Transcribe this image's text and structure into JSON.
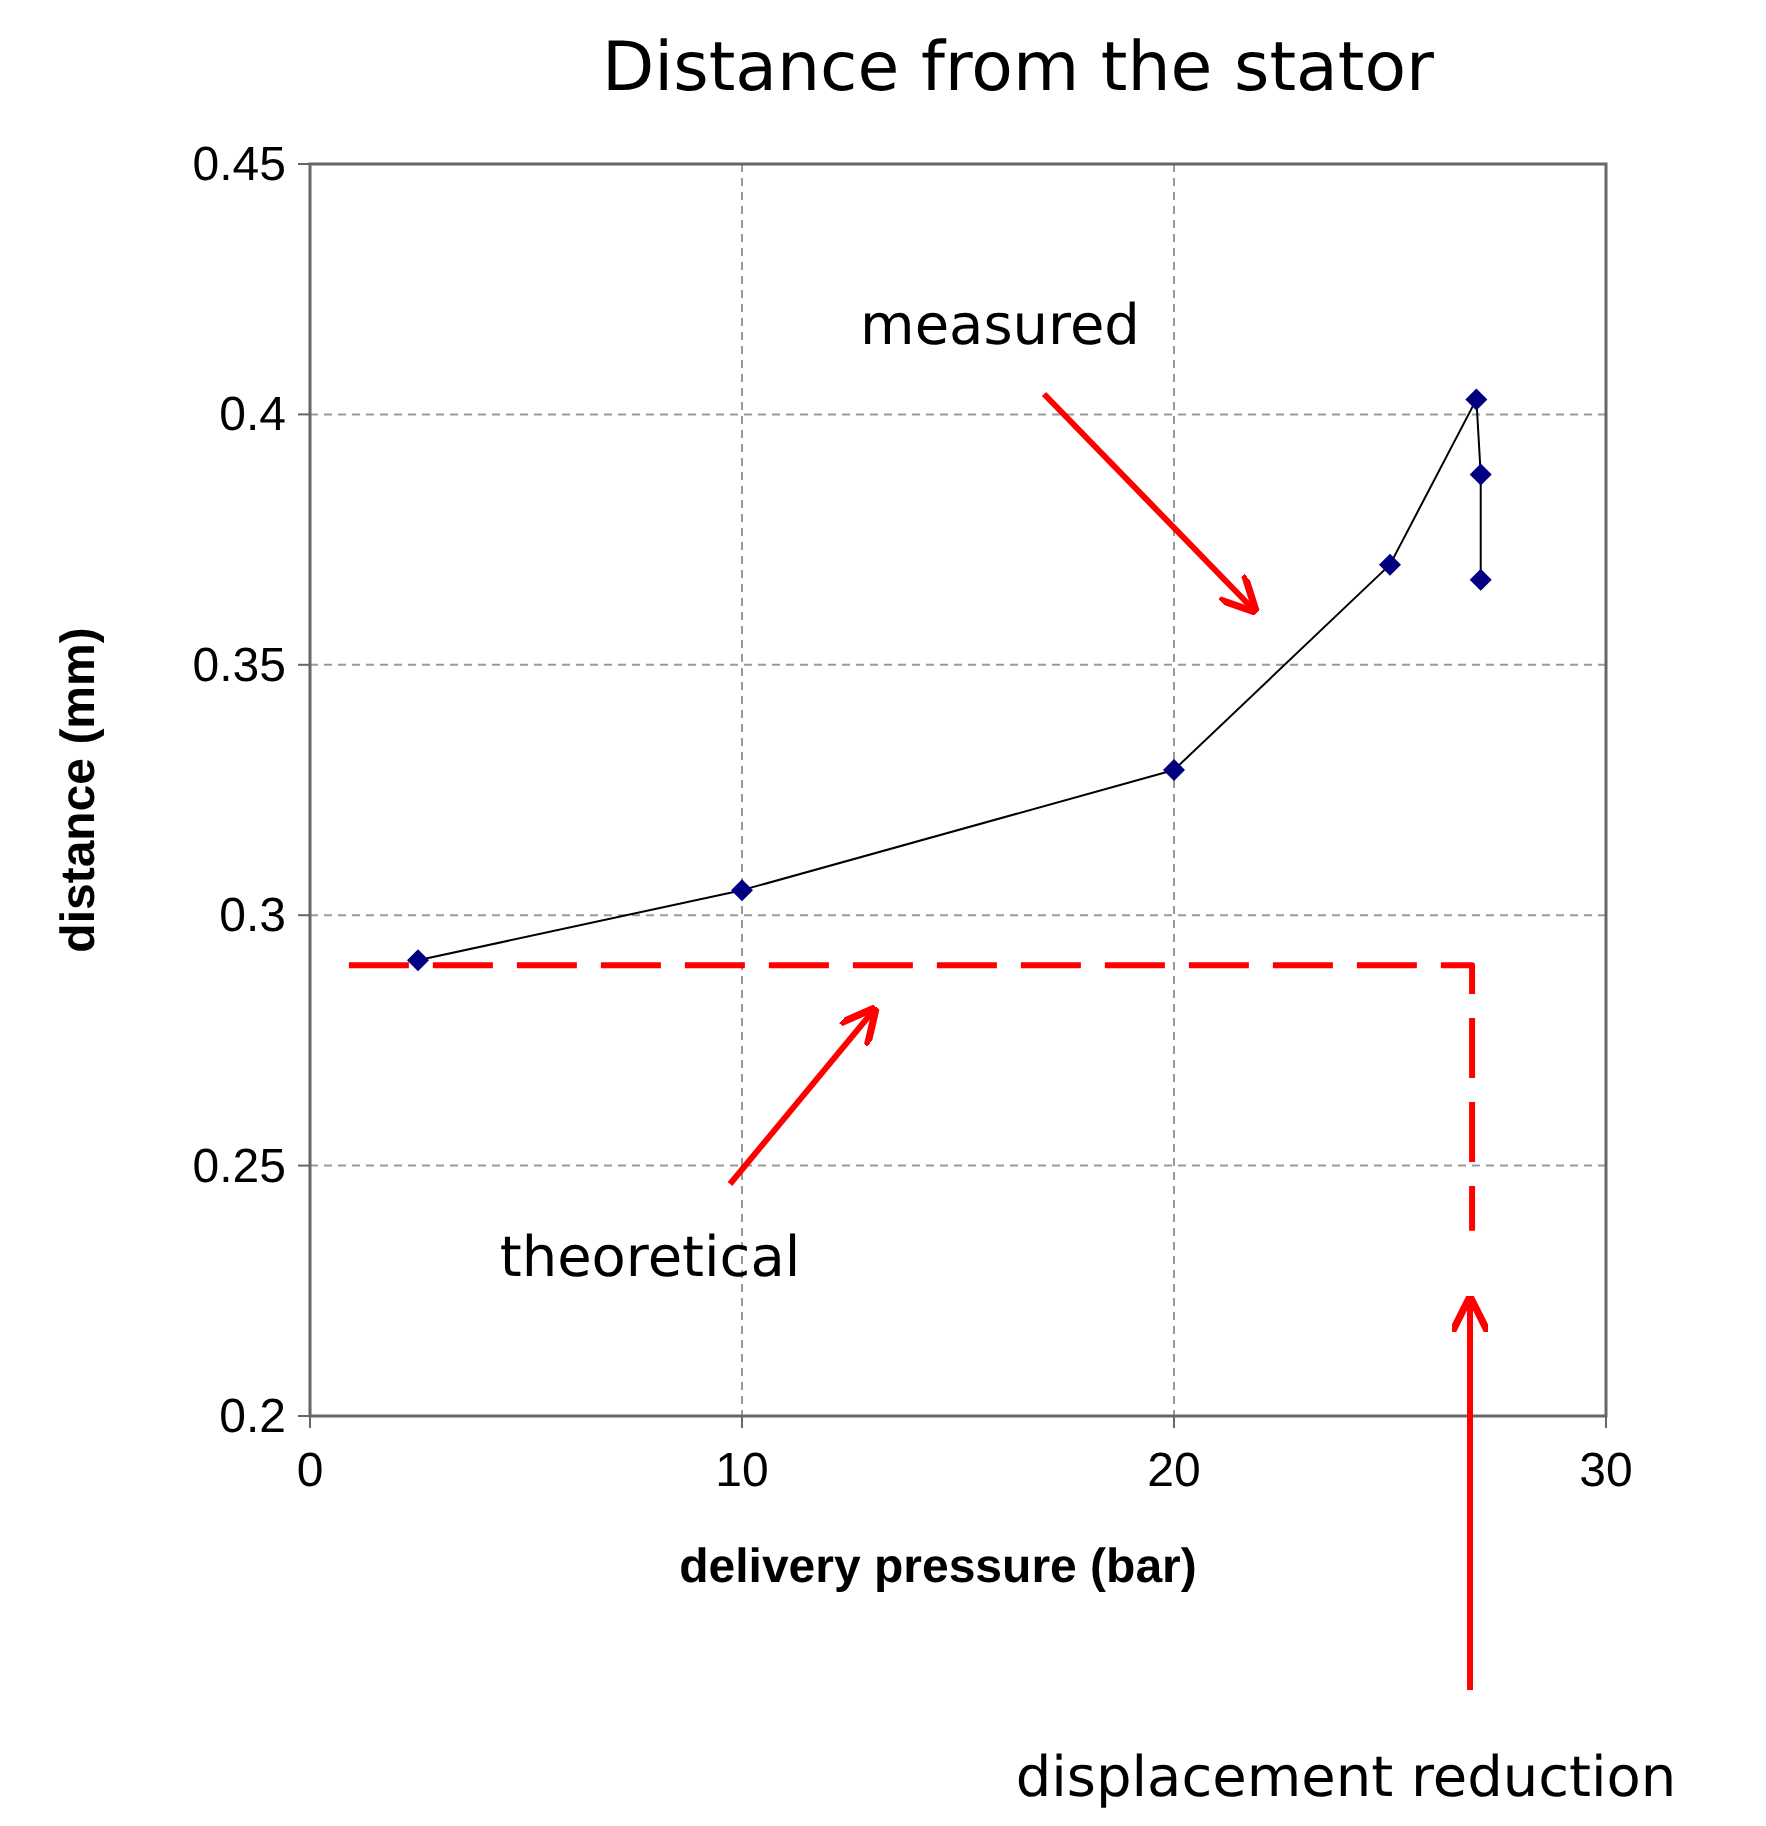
{
  "chart_data": {
    "type": "line",
    "title": "Distance from the stator",
    "xlabel": "delivery pressure (bar)",
    "ylabel": "distance (mm)",
    "xlim": [
      0,
      30
    ],
    "xticks": [
      0,
      10,
      20,
      30
    ],
    "ylim": [
      0.2,
      0.45
    ],
    "yticks": [
      0.2,
      0.25,
      0.3,
      0.35,
      0.4,
      0.45
    ],
    "grid": true,
    "series": [
      {
        "color": "#000080",
        "x": [
          2.5,
          10,
          20,
          25,
          27,
          27.1,
          27.1
        ],
        "values": [
          0.291,
          0.305,
          0.329,
          0.37,
          0.403,
          0.388,
          0.367
        ],
        "marker": "diamond",
        "line_style": "solid"
      },
      {
        "color": "#ff0000",
        "x": [
          0.9,
          26.9,
          26.9
        ],
        "values": [
          0.29,
          0.29,
          0.237
        ],
        "marker": "none",
        "line_style": "dashed"
      }
    ],
    "annotations": [
      "measured",
      "theoretical",
      "displacement reduction"
    ]
  }
}
